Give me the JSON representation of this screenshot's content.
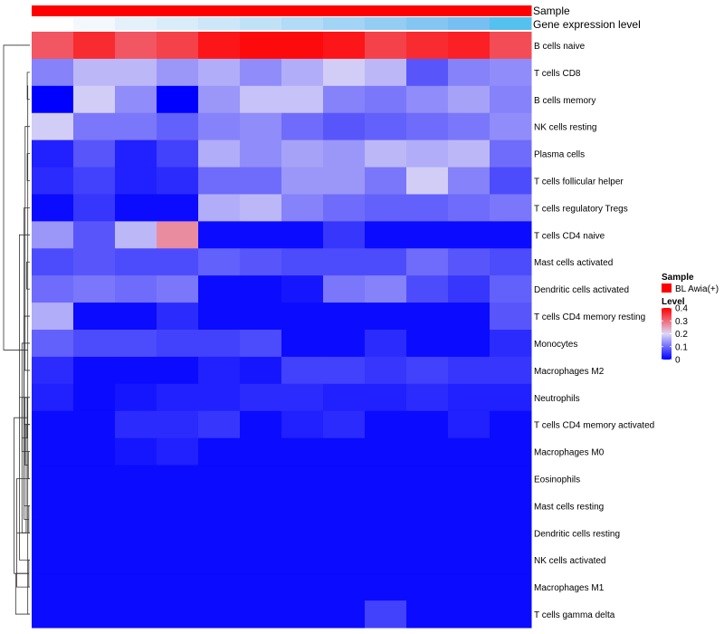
{
  "chart_data": {
    "type": "heatmap",
    "title": "",
    "annotation_tracks": [
      {
        "label": "Sample",
        "values": [
          "BL Awia(+)",
          "BL Awia(+)",
          "BL Awia(+)",
          "BL Awia(+)",
          "BL Awia(+)",
          "BL Awia(+)",
          "BL Awia(+)",
          "BL Awia(+)",
          "BL Awia(+)",
          "BL Awia(+)",
          "BL Awia(+)",
          "BL Awia(+)"
        ],
        "colors": [
          "#ff0000",
          "#ff0000",
          "#ff0000",
          "#ff0000",
          "#ff0000",
          "#ff0000",
          "#ff0000",
          "#ff0000",
          "#ff0000",
          "#ff0000",
          "#ff0000",
          "#ff0000"
        ]
      },
      {
        "label": "Gene expression level",
        "colors": [
          "#ffffff",
          "#f3f8fc",
          "#e4f1fb",
          "#d9ecf9",
          "#cde7f8",
          "#c0e2f7",
          "#b1dbf6",
          "#a2d4f5",
          "#93cdf4",
          "#84c6f3",
          "#75bff2",
          "#54c1ee"
        ]
      }
    ],
    "rows": [
      "B cells naive",
      "T cells CD8",
      "B cells memory",
      "NK cells resting",
      "Plasma cells",
      "T cells follicular helper",
      "T cells regulatory  Tregs",
      "T cells CD4 naive",
      "Mast cells activated",
      "Dendritic cells activated",
      "T cells CD4 memory resting",
      "Monocytes",
      "Macrophages M2",
      "Neutrophils",
      "T cells CD4 memory activated",
      "Macrophages M0",
      "Eosinophils",
      "Mast cells resting",
      "Dendritic cells resting",
      "NK cells activated",
      "Macrophages M1",
      "T cells gamma delta"
    ],
    "n_columns": 12,
    "values": [
      [
        0.32,
        0.36,
        0.32,
        0.34,
        0.38,
        0.39,
        0.39,
        0.38,
        0.34,
        0.36,
        0.37,
        0.33
      ],
      [
        0.12,
        0.17,
        0.17,
        0.14,
        0.16,
        0.13,
        0.16,
        0.19,
        0.17,
        0.08,
        0.12,
        0.13
      ],
      [
        0.0,
        0.19,
        0.13,
        0.0,
        0.14,
        0.18,
        0.18,
        0.12,
        0.11,
        0.13,
        0.15,
        0.12
      ],
      [
        0.19,
        0.11,
        0.11,
        0.09,
        0.12,
        0.13,
        0.1,
        0.08,
        0.09,
        0.1,
        0.11,
        0.13
      ],
      [
        0.03,
        0.08,
        0.03,
        0.06,
        0.16,
        0.13,
        0.15,
        0.14,
        0.17,
        0.16,
        0.17,
        0.1
      ],
      [
        0.04,
        0.06,
        0.03,
        0.04,
        0.1,
        0.1,
        0.14,
        0.14,
        0.11,
        0.19,
        0.12,
        0.07
      ],
      [
        0.01,
        0.05,
        0.01,
        0.01,
        0.16,
        0.17,
        0.12,
        0.1,
        0.09,
        0.09,
        0.1,
        0.11
      ],
      [
        0.14,
        0.08,
        0.17,
        0.27,
        0.01,
        0.01,
        0.01,
        0.05,
        0.01,
        0.01,
        0.01,
        0.01
      ],
      [
        0.07,
        0.08,
        0.07,
        0.07,
        0.09,
        0.08,
        0.07,
        0.07,
        0.07,
        0.1,
        0.08,
        0.07
      ],
      [
        0.1,
        0.11,
        0.1,
        0.11,
        0.01,
        0.01,
        0.02,
        0.11,
        0.12,
        0.07,
        0.05,
        0.09
      ],
      [
        0.16,
        0.01,
        0.01,
        0.04,
        0.01,
        0.01,
        0.01,
        0.01,
        0.01,
        0.01,
        0.01,
        0.08
      ],
      [
        0.09,
        0.07,
        0.07,
        0.06,
        0.06,
        0.07,
        0.01,
        0.01,
        0.04,
        0.01,
        0.01,
        0.04
      ],
      [
        0.04,
        0.01,
        0.01,
        0.01,
        0.03,
        0.02,
        0.06,
        0.06,
        0.05,
        0.06,
        0.05,
        0.05
      ],
      [
        0.03,
        0.01,
        0.02,
        0.03,
        0.03,
        0.04,
        0.04,
        0.03,
        0.03,
        0.04,
        0.03,
        0.03
      ],
      [
        0.01,
        0.01,
        0.04,
        0.04,
        0.05,
        0.01,
        0.03,
        0.04,
        0.01,
        0.01,
        0.03,
        0.01
      ],
      [
        0.01,
        0.01,
        0.02,
        0.03,
        0.01,
        0.01,
        0.01,
        0.01,
        0.01,
        0.01,
        0.01,
        0.01
      ],
      [
        0.01,
        0.01,
        0.01,
        0.01,
        0.01,
        0.01,
        0.01,
        0.01,
        0.01,
        0.01,
        0.01,
        0.01
      ],
      [
        0.01,
        0.01,
        0.01,
        0.01,
        0.01,
        0.01,
        0.01,
        0.01,
        0.01,
        0.01,
        0.01,
        0.01
      ],
      [
        0.01,
        0.01,
        0.01,
        0.01,
        0.01,
        0.01,
        0.01,
        0.01,
        0.01,
        0.01,
        0.01,
        0.01
      ],
      [
        0.01,
        0.01,
        0.01,
        0.01,
        0.01,
        0.01,
        0.01,
        0.01,
        0.01,
        0.01,
        0.01,
        0.01
      ],
      [
        0.01,
        0.01,
        0.01,
        0.01,
        0.01,
        0.01,
        0.01,
        0.01,
        0.01,
        0.01,
        0.01,
        0.01
      ],
      [
        0.01,
        0.01,
        0.01,
        0.01,
        0.01,
        0.01,
        0.01,
        0.01,
        0.06,
        0.01,
        0.01,
        0.01
      ]
    ],
    "color_scale": {
      "stops": [
        {
          "value": 0.0,
          "color": "#0000ff"
        },
        {
          "value": 0.2,
          "color": "#ddd8f6"
        },
        {
          "value": 0.4,
          "color": "#ff0000"
        }
      ],
      "range": [
        0,
        0.4
      ]
    },
    "legend": {
      "position": "right",
      "sample_title": "Sample",
      "sample_entry": {
        "label": "BL Awia(+)",
        "color": "#ff0000"
      },
      "level_title": "Level",
      "level_ticks": [
        "0.4",
        "0.3",
        "0.2",
        "0.1",
        "0"
      ],
      "level_tick_values": [
        0.4,
        0.3,
        0.2,
        0.1,
        0
      ]
    },
    "dendrogram": {
      "side": "left",
      "merges": [
        [
          1,
          2,
          0.1
        ],
        [
          3,
          12,
          0.18
        ],
        [
          4,
          5,
          0.1
        ],
        [
          14,
          6,
          0.22
        ],
        [
          13,
          15,
          0.3
        ],
        [
          8,
          9,
          0.12
        ],
        [
          17,
          10,
          0.22
        ],
        [
          18,
          11,
          0.3
        ],
        [
          19,
          7,
          0.4
        ],
        [
          16,
          20,
          0.5
        ],
        [
          15,
          16,
          0.06
        ],
        [
          17,
          18,
          0.04
        ],
        [
          19,
          20,
          0.04
        ],
        [
          21,
          22,
          0.08
        ],
        [
          29,
          30,
          0.1
        ],
        [
          14,
          31,
          0.14
        ],
        [
          13,
          32,
          0.18
        ],
        [
          12,
          33,
          0.22
        ],
        [
          34,
          21,
          0.54
        ],
        [
          0,
          35,
          1.0
        ],
        [
          36,
          34,
          0.6
        ]
      ]
    }
  }
}
